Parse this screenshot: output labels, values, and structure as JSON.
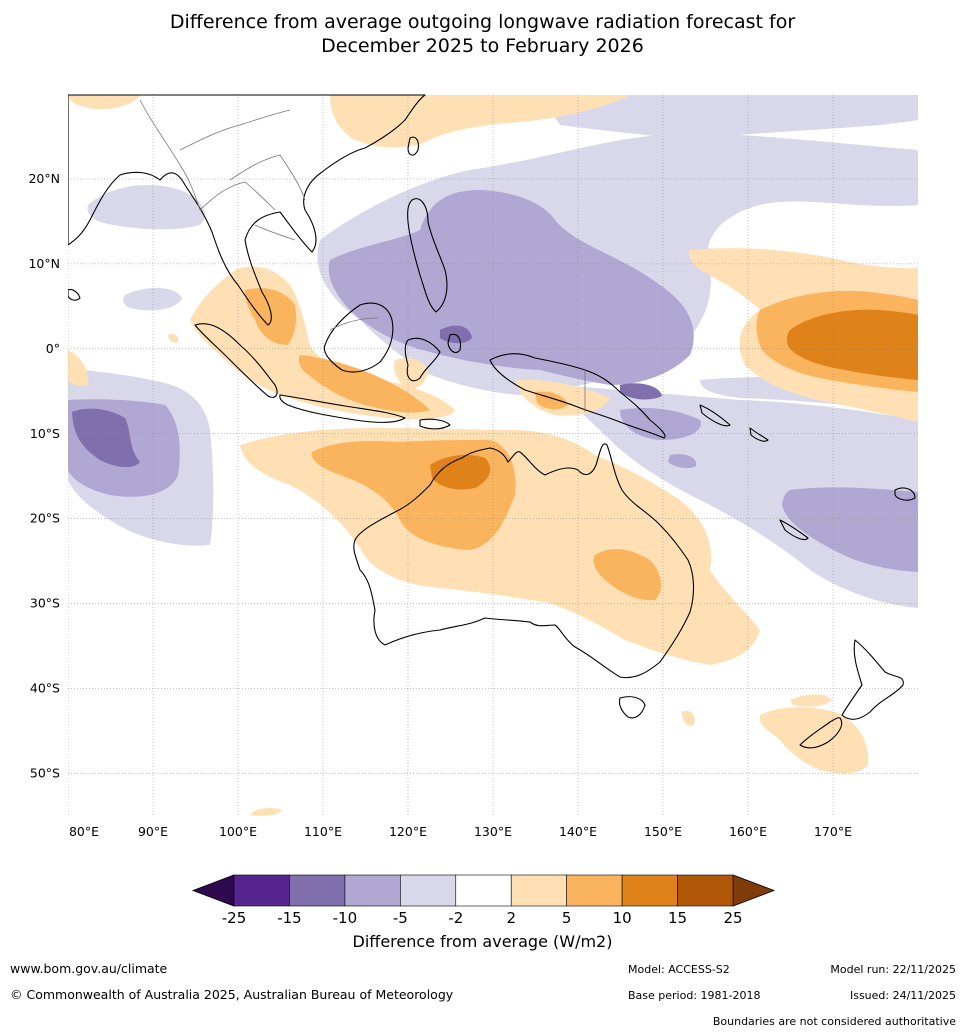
{
  "title": {
    "line1": "Difference from average outgoing longwave radiation forecast for",
    "line2": "December 2025 to February 2026"
  },
  "map": {
    "lon_labels": [
      "80°E",
      "90°E",
      "100°E",
      "110°E",
      "120°E",
      "130°E",
      "140°E",
      "150°E",
      "160°E",
      "170°E"
    ],
    "lat_labels": [
      "20°N",
      "10°N",
      "0°",
      "10°S",
      "20°S",
      "30°S",
      "40°S",
      "50°S"
    ],
    "lon_values": [
      80,
      90,
      100,
      110,
      120,
      130,
      140,
      150,
      160,
      170
    ],
    "lat_values": [
      20,
      10,
      0,
      -10,
      -20,
      -30,
      -40,
      -50
    ],
    "extent": {
      "lon_min": 80,
      "lon_max": 180,
      "lat_min": -55,
      "lat_max": 30
    }
  },
  "colorbar": {
    "label": "Difference from average (W/m2)",
    "ticks": [
      "-25",
      "-15",
      "-10",
      "-5",
      "-2",
      "2",
      "5",
      "10",
      "15",
      "25"
    ],
    "colors": [
      "#56258f",
      "#7f6fad",
      "#b0a8d2",
      "#d8d8ea",
      "#ffffff",
      "#fee0b4",
      "#fbb45e",
      "#e0821a",
      "#b15708"
    ],
    "extend_low_color": "#2d0a4e",
    "extend_high_color": "#7f3b08"
  },
  "legend_colors": {
    "strong_neg": "#7f6fad",
    "mod_neg": "#b0a8d2",
    "weak_neg": "#d8d8ea",
    "weak_pos": "#fee0b4",
    "mod_pos": "#fbb45e",
    "strong_pos": "#e0821a",
    "coast": "#000000",
    "border": "#777777"
  },
  "footer": {
    "website": "www.bom.gov.au/climate",
    "copyright": "© Commonwealth of Australia 2025, Australian Bureau of Meteorology",
    "model": "Model: ACCESS-S2",
    "base_period": "Base period: 1981-2018",
    "model_run": "Model run: 22/11/2025",
    "issued": "Issued: 24/11/2025",
    "disclaimer": "Boundaries are not considered authoritative"
  }
}
